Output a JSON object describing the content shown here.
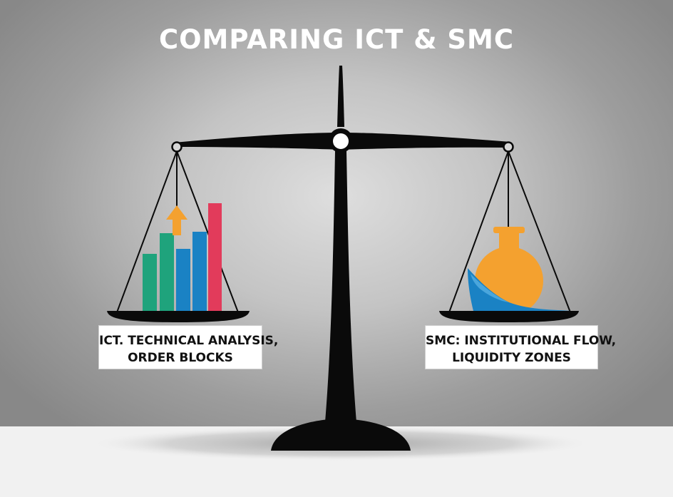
{
  "title": "COMPARING ICT & SMC",
  "left_pan": {
    "label_line1": "ICT. TECHNICAL ANALYSIS,",
    "label_line2": "ORDER BLOCKS",
    "icon": "bar-chart-with-up-arrow-icon",
    "colors": {
      "green": "#1fa37c",
      "blue": "#1a82c4",
      "red": "#e23b5b",
      "arrow": "#f4a12f"
    }
  },
  "right_pan": {
    "label_line1": "SMC: INSTITUTIONAL FLOW,",
    "label_line2": "LIQUIDITY ZONES",
    "icon": "flask-with-wave-icon",
    "colors": {
      "flask": "#f4a12f",
      "wave": "#1a82c4"
    }
  },
  "colors": {
    "scale": "#0a0a0a",
    "title": "#ffffff"
  }
}
